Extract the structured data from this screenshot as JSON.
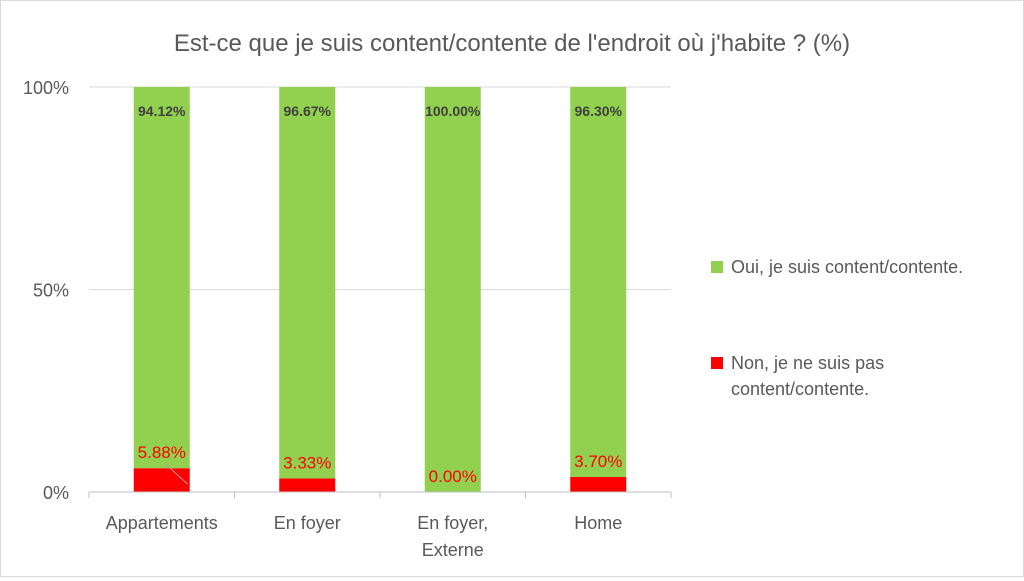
{
  "chart_data": {
    "type": "bar",
    "stacked": true,
    "title": "Est-ce que je suis content/contente de l'endroit où j'habite ? (%)",
    "categories": [
      [
        "Appartements"
      ],
      [
        "En foyer"
      ],
      [
        "En foyer,",
        "Externe"
      ],
      [
        "Home"
      ]
    ],
    "series": [
      {
        "name": "Non, je ne suis pas content/contente.",
        "name_lines": [
          "Non, je ne suis pas",
          "content/contente."
        ],
        "color": "#ff0000",
        "values": [
          5.88,
          3.33,
          0.0,
          3.7
        ],
        "labels": [
          "5.88%",
          "3.33%",
          "0.00%",
          "3.70%"
        ]
      },
      {
        "name": "Oui, je suis content/contente.",
        "name_lines": [
          "Oui, je suis content/contente."
        ],
        "color": "#92d050",
        "values": [
          94.12,
          96.67,
          100.0,
          96.3
        ],
        "labels": [
          "94.12%",
          "96.67%",
          "100.00%",
          "96.30%"
        ]
      }
    ],
    "ylim": [
      0,
      100
    ],
    "yticks": [
      0,
      50,
      100
    ],
    "ytick_labels": [
      "0%",
      "50%",
      "100%"
    ],
    "grid": true,
    "legend_position": "right"
  }
}
